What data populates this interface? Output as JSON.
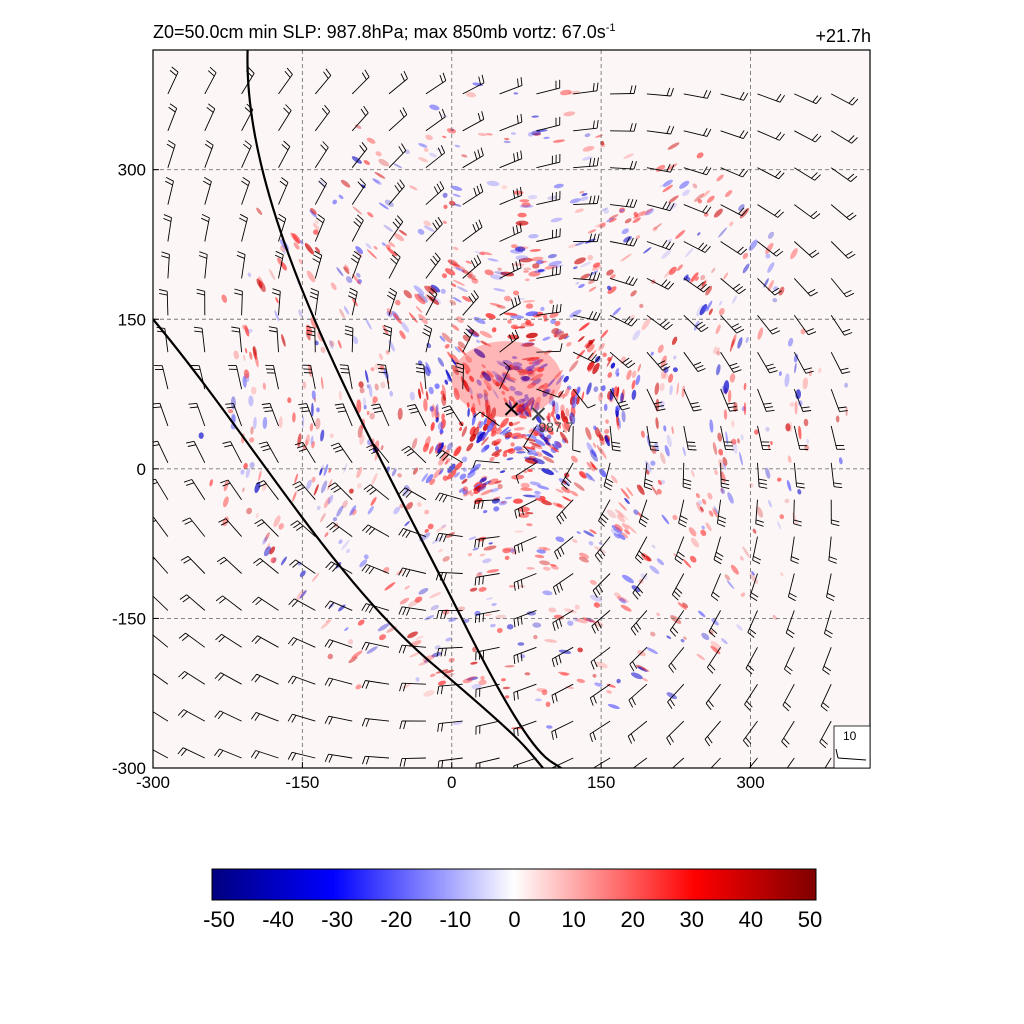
{
  "header": {
    "title_prefix": "Z0=50.0cm  min SLP: 987.8hPa; max 850mb vortz:  67.0s",
    "title_exp": "-1",
    "time_label": "+21.7h"
  },
  "map": {
    "x_ticks": [
      "-300",
      "-150",
      "0",
      "150",
      "300"
    ],
    "y_ticks": [
      "300",
      "150",
      "0",
      "-150",
      "-300"
    ],
    "x_range": [
      -300,
      420
    ],
    "y_range": [
      -300,
      420
    ],
    "grid": true,
    "center_markers": [
      {
        "label": "",
        "x": 60,
        "y": 60
      },
      {
        "label": "987.7",
        "x": 87,
        "y": 55
      }
    ],
    "wind_reference_label": "10",
    "colors": {
      "positive": "#dd0000",
      "negative": "#0000cc",
      "track": "#000000"
    }
  },
  "colorbar": {
    "labels": [
      "-50",
      "-40",
      "-30",
      "-20",
      "-10",
      "0",
      "10",
      "20",
      "30",
      "40",
      "50"
    ],
    "min": -50,
    "max": 50,
    "colors": [
      "#000080",
      "#0000ff",
      "#ffffff",
      "#ff0000",
      "#800000"
    ]
  }
}
